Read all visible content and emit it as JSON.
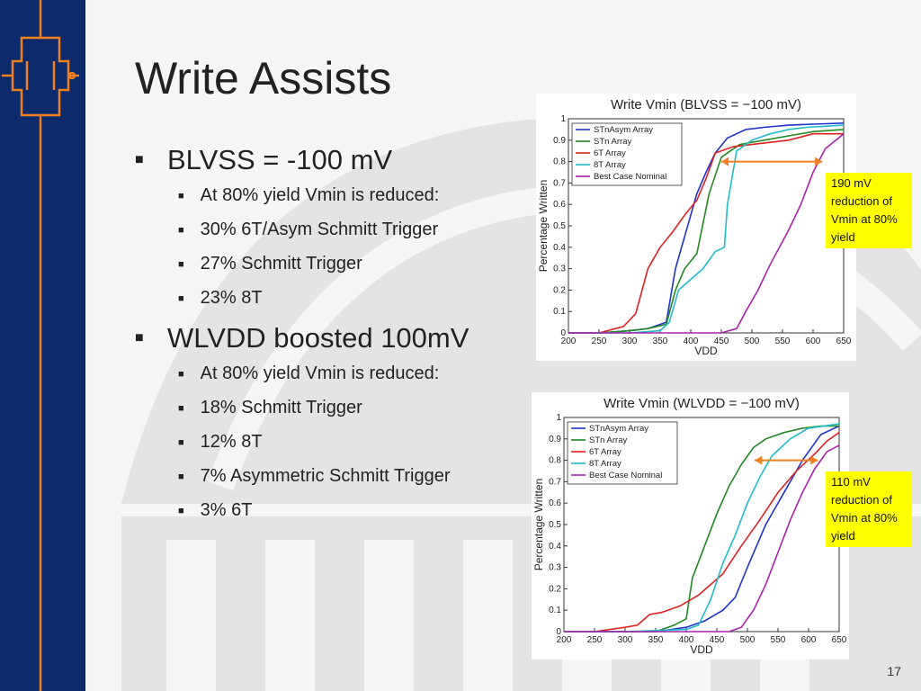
{
  "slide": {
    "title": "Write Assists",
    "page_number": "17",
    "bullets": [
      {
        "text": "BLVSS = -100 mV",
        "sub": [
          "At 80% yield Vmin is reduced:",
          "30% 6T/Asym Schmitt Trigger",
          "27% Schmitt Trigger",
          "23% 8T"
        ]
      },
      {
        "text": "WLVDD boosted 100mV",
        "sub": [
          "At 80% yield Vmin is reduced:",
          "18% Schmitt Trigger",
          "12% 8T",
          "7% Asymmetric Schmitt Trigger",
          "3% 6T"
        ]
      }
    ],
    "callouts": [
      "190 mV reduction of Vmin at 80% yield",
      "110 mV reduction of Vmin at 80% yield"
    ]
  },
  "colors": {
    "sidebar": "#0c2a6b",
    "callout": "#ffff00",
    "arrow": "#f07f1f"
  },
  "chart_data": [
    {
      "type": "line",
      "title": "Write Vmin (BLVSS = −100 mV)",
      "xlabel": "VDD",
      "ylabel": "Percentage Written",
      "xlim": [
        200,
        650
      ],
      "ylim": [
        0,
        1
      ],
      "xticks": [
        200,
        250,
        300,
        350,
        400,
        450,
        500,
        550,
        600,
        650
      ],
      "yticks": [
        0,
        0.1,
        0.2,
        0.3,
        0.4,
        0.5,
        0.6,
        0.7,
        0.8,
        0.9,
        1
      ],
      "legend_position": "top-left",
      "series": [
        {
          "name": "STnAsym Array",
          "color": "#2233cc",
          "x": [
            200,
            250,
            300,
            330,
            360,
            375,
            390,
            400,
            410,
            425,
            440,
            460,
            490,
            520,
            560,
            600,
            650
          ],
          "y": [
            0,
            0,
            0.01,
            0.02,
            0.05,
            0.3,
            0.45,
            0.55,
            0.65,
            0.75,
            0.84,
            0.91,
            0.95,
            0.96,
            0.97,
            0.975,
            0.98
          ]
        },
        {
          "name": "STn Array",
          "color": "#228822",
          "x": [
            200,
            250,
            300,
            330,
            360,
            375,
            390,
            410,
            430,
            450,
            480,
            520,
            560,
            600,
            650
          ],
          "y": [
            0,
            0,
            0.01,
            0.02,
            0.04,
            0.2,
            0.3,
            0.37,
            0.65,
            0.82,
            0.88,
            0.9,
            0.92,
            0.94,
            0.95
          ]
        },
        {
          "name": "6T Array",
          "color": "#dd2222",
          "x": [
            200,
            250,
            290,
            310,
            330,
            350,
            370,
            390,
            410,
            425,
            440,
            470,
            500,
            530,
            560,
            600,
            650
          ],
          "y": [
            0,
            0,
            0.03,
            0.09,
            0.3,
            0.4,
            0.47,
            0.55,
            0.62,
            0.72,
            0.84,
            0.87,
            0.88,
            0.89,
            0.9,
            0.93,
            0.93
          ]
        },
        {
          "name": "8T Array",
          "color": "#22bbcc",
          "x": [
            200,
            250,
            300,
            350,
            365,
            380,
            400,
            420,
            440,
            455,
            460,
            475,
            500,
            530,
            560,
            590,
            620,
            650
          ],
          "y": [
            0,
            0,
            0,
            0.01,
            0.05,
            0.2,
            0.25,
            0.3,
            0.38,
            0.4,
            0.6,
            0.85,
            0.9,
            0.93,
            0.95,
            0.96,
            0.965,
            0.97
          ]
        },
        {
          "name": "Best Case Nominal",
          "color": "#aa22aa",
          "x": [
            200,
            300,
            400,
            450,
            475,
            490,
            510,
            530,
            560,
            580,
            600,
            620,
            650
          ],
          "y": [
            0,
            0,
            0,
            0,
            0.02,
            0.1,
            0.2,
            0.32,
            0.48,
            0.6,
            0.75,
            0.86,
            0.93
          ]
        }
      ]
    },
    {
      "type": "line",
      "title": "Write Vmin (WLVDD = −100 mV)",
      "xlabel": "VDD",
      "ylabel": "Percentage Written",
      "xlim": [
        200,
        650
      ],
      "ylim": [
        0,
        1
      ],
      "xticks": [
        200,
        250,
        300,
        350,
        400,
        450,
        500,
        550,
        600,
        650
      ],
      "yticks": [
        0,
        0.1,
        0.2,
        0.3,
        0.4,
        0.5,
        0.6,
        0.7,
        0.8,
        0.9,
        1
      ],
      "legend_position": "top-left",
      "series": [
        {
          "name": "STnAsym Array",
          "color": "#2233cc",
          "x": [
            200,
            300,
            350,
            400,
            430,
            460,
            480,
            500,
            530,
            560,
            590,
            620,
            650
          ],
          "y": [
            0,
            0,
            0,
            0.02,
            0.05,
            0.1,
            0.16,
            0.3,
            0.5,
            0.65,
            0.8,
            0.92,
            0.96
          ]
        },
        {
          "name": "STn Array",
          "color": "#228822",
          "x": [
            200,
            300,
            350,
            380,
            400,
            410,
            430,
            450,
            470,
            490,
            510,
            530,
            560,
            590,
            620,
            650
          ],
          "y": [
            0,
            0,
            0,
            0.03,
            0.06,
            0.25,
            0.4,
            0.55,
            0.68,
            0.78,
            0.86,
            0.9,
            0.93,
            0.95,
            0.96,
            0.96
          ]
        },
        {
          "name": "6T Array",
          "color": "#dd2222",
          "x": [
            200,
            250,
            300,
            320,
            340,
            360,
            390,
            420,
            440,
            460,
            490,
            520,
            550,
            580,
            610,
            630,
            650
          ],
          "y": [
            0,
            0,
            0.02,
            0.03,
            0.08,
            0.09,
            0.12,
            0.17,
            0.22,
            0.27,
            0.4,
            0.52,
            0.65,
            0.75,
            0.83,
            0.89,
            0.93
          ]
        },
        {
          "name": "8T Array",
          "color": "#22bbcc",
          "x": [
            200,
            300,
            400,
            420,
            440,
            460,
            480,
            500,
            520,
            540,
            570,
            600,
            650
          ],
          "y": [
            0,
            0,
            0.01,
            0.03,
            0.15,
            0.32,
            0.45,
            0.6,
            0.72,
            0.82,
            0.9,
            0.95,
            0.97
          ]
        },
        {
          "name": "Best Case Nominal",
          "color": "#aa22aa",
          "x": [
            200,
            400,
            470,
            490,
            510,
            530,
            550,
            570,
            590,
            610,
            630,
            650
          ],
          "y": [
            0,
            0,
            0,
            0.02,
            0.1,
            0.22,
            0.37,
            0.52,
            0.65,
            0.76,
            0.84,
            0.87
          ]
        }
      ]
    }
  ]
}
